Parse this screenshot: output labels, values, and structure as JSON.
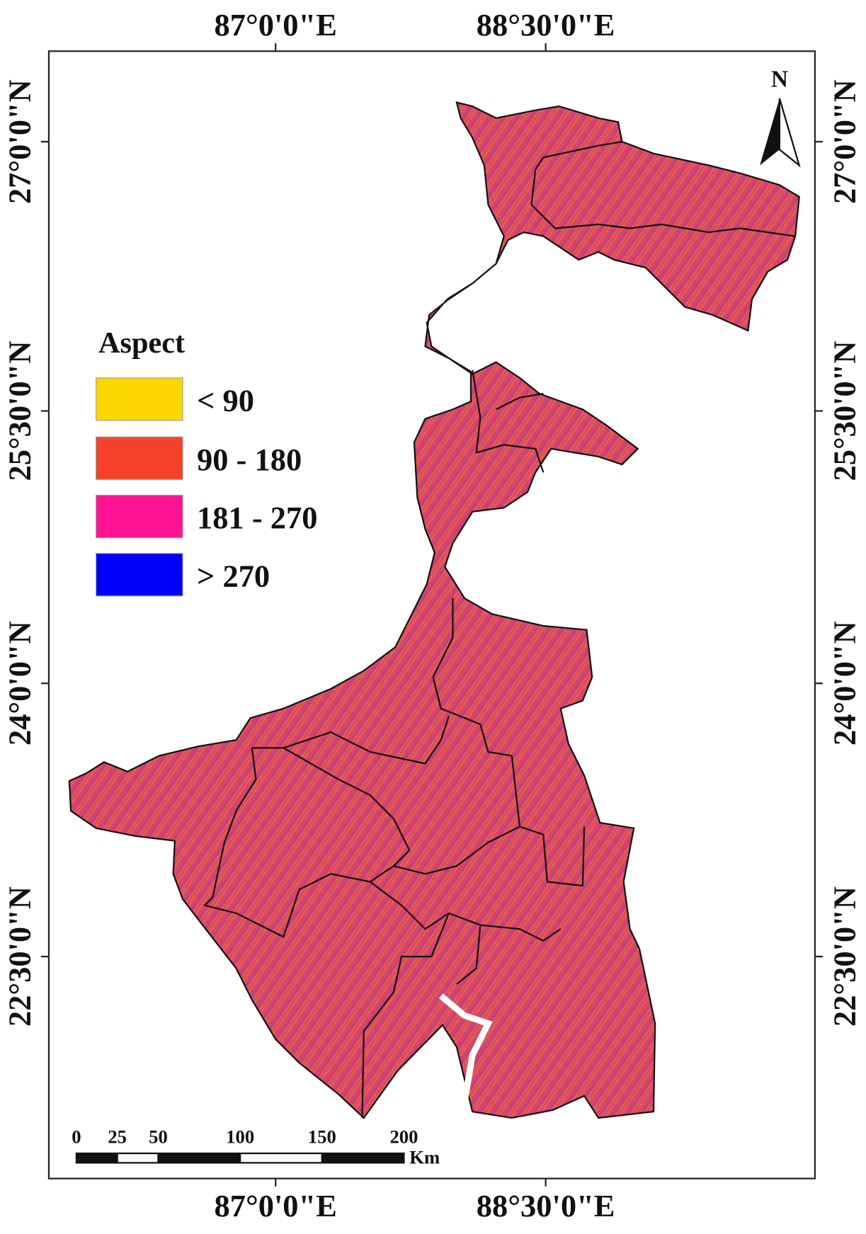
{
  "graticule": {
    "longitudes": [
      "87°0'0\"E",
      "88°30'0\"E"
    ],
    "latitudes": [
      "27°0'0\"N",
      "25°30'0\"N",
      "24°0'0\"N",
      "22°30'0\"N"
    ]
  },
  "legend": {
    "title": "Aspect",
    "items": [
      {
        "label": "< 90",
        "color": "#ffd700"
      },
      {
        "label": "90 - 180",
        "color": "#f5402a"
      },
      {
        "label": "181 - 270",
        "color": "#ff1493"
      },
      {
        "label": "> 270",
        "color": "#0000ff"
      }
    ]
  },
  "scale_bar": {
    "labels": [
      0,
      25,
      50,
      100,
      150,
      200
    ],
    "unit": "Km"
  },
  "north_arrow": {
    "label": "N"
  }
}
